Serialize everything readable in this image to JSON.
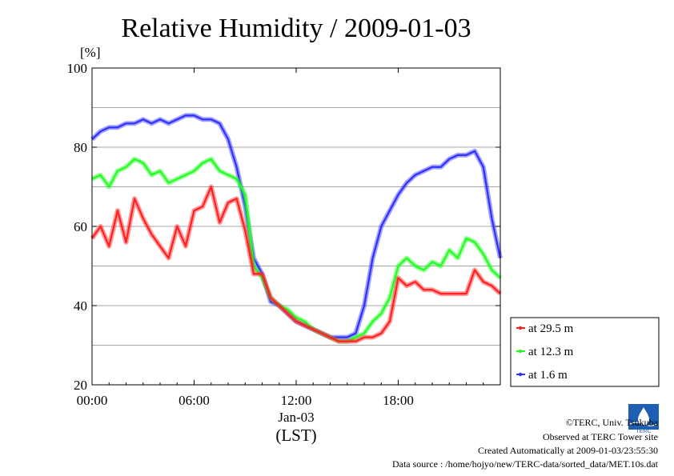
{
  "chart_data": {
    "type": "line",
    "title": "Relative Humidity / 2009-01-03",
    "ylabel": "[%]",
    "ylim": [
      20,
      100
    ],
    "yticks": [
      "100",
      "80",
      "60",
      "40",
      "20"
    ],
    "xlim": [
      0,
      24
    ],
    "xticks": [
      "00:00",
      "06:00",
      "12:00",
      "18:00"
    ],
    "date_label": "Jan-03",
    "time_zone_label": "(LST)",
    "grid": true,
    "legend_position": "right",
    "series": [
      {
        "name": "at 29.5 m",
        "color": "#ff2020",
        "x": [
          0,
          0.5,
          1,
          1.5,
          2,
          2.5,
          3,
          3.5,
          4,
          4.5,
          5,
          5.5,
          6,
          6.5,
          7,
          7.5,
          8,
          8.5,
          9,
          9.5,
          10,
          10.5,
          11,
          11.5,
          12,
          12.5,
          13,
          13.5,
          14,
          14.5,
          15,
          15.5,
          16,
          16.5,
          17,
          17.5,
          18,
          18.5,
          19,
          19.5,
          20,
          20.5,
          21,
          21.5,
          22,
          22.5,
          23,
          23.5,
          24
        ],
        "values": [
          57,
          60,
          55,
          64,
          56,
          67,
          62,
          58,
          55,
          52,
          60,
          55,
          64,
          65,
          70,
          61,
          66,
          67,
          59,
          48,
          48,
          42,
          40,
          38,
          36,
          35,
          34,
          33,
          32,
          31,
          31,
          31,
          32,
          32,
          33,
          36,
          47,
          45,
          46,
          44,
          44,
          43,
          43,
          43,
          43,
          49,
          46,
          45,
          43
        ]
      },
      {
        "name": "at 12.3 m",
        "color": "#20ff20",
        "x": [
          0,
          0.5,
          1,
          1.5,
          2,
          2.5,
          3,
          3.5,
          4,
          4.5,
          5,
          5.5,
          6,
          6.5,
          7,
          7.5,
          8,
          8.5,
          9,
          9.5,
          10,
          10.5,
          11,
          11.5,
          12,
          12.5,
          13,
          13.5,
          14,
          14.5,
          15,
          15.5,
          16,
          16.5,
          17,
          17.5,
          18,
          18.5,
          19,
          19.5,
          20,
          20.5,
          21,
          21.5,
          22,
          22.5,
          23,
          23.5,
          24
        ],
        "values": [
          72,
          73,
          70,
          74,
          75,
          77,
          76,
          73,
          74,
          71,
          72,
          73,
          74,
          76,
          77,
          74,
          73,
          72,
          68,
          50,
          47,
          42,
          40,
          39,
          37,
          36,
          34,
          33,
          32,
          31,
          31,
          32,
          33,
          36,
          38,
          42,
          50,
          52,
          50,
          49,
          51,
          50,
          54,
          52,
          57,
          56,
          53,
          49,
          47
        ]
      },
      {
        "name": "at 1.6 m",
        "color": "#3030ff",
        "x": [
          0,
          0.5,
          1,
          1.5,
          2,
          2.5,
          3,
          3.5,
          4,
          4.5,
          5,
          5.5,
          6,
          6.5,
          7,
          7.5,
          8,
          8.5,
          9,
          9.5,
          10,
          10.5,
          11,
          11.5,
          12,
          12.5,
          13,
          13.5,
          14,
          14.5,
          15,
          15.5,
          16,
          16.5,
          17,
          17.5,
          18,
          18.5,
          19,
          19.5,
          20,
          20.5,
          21,
          21.5,
          22,
          22.5,
          23,
          23.5,
          24
        ],
        "values": [
          82,
          84,
          85,
          85,
          86,
          86,
          87,
          86,
          87,
          86,
          87,
          88,
          88,
          87,
          87,
          86,
          82,
          75,
          65,
          52,
          48,
          41,
          40,
          38,
          36,
          35,
          34,
          33,
          32,
          32,
          32,
          33,
          40,
          52,
          60,
          64,
          68,
          71,
          73,
          74,
          75,
          75,
          77,
          78,
          78,
          79,
          75,
          62,
          52
        ]
      }
    ]
  },
  "footer": {
    "copyright": "©TERC, Univ. Tsukuba",
    "observed": "Observed at TERC Tower site",
    "created": "Created Automatically at 2009-01-03/23:55:30",
    "source": "Data source : /home/hojyo/new/TERC-data/sorted_data/MET.10s.dat",
    "logo_text": "TERC"
  }
}
